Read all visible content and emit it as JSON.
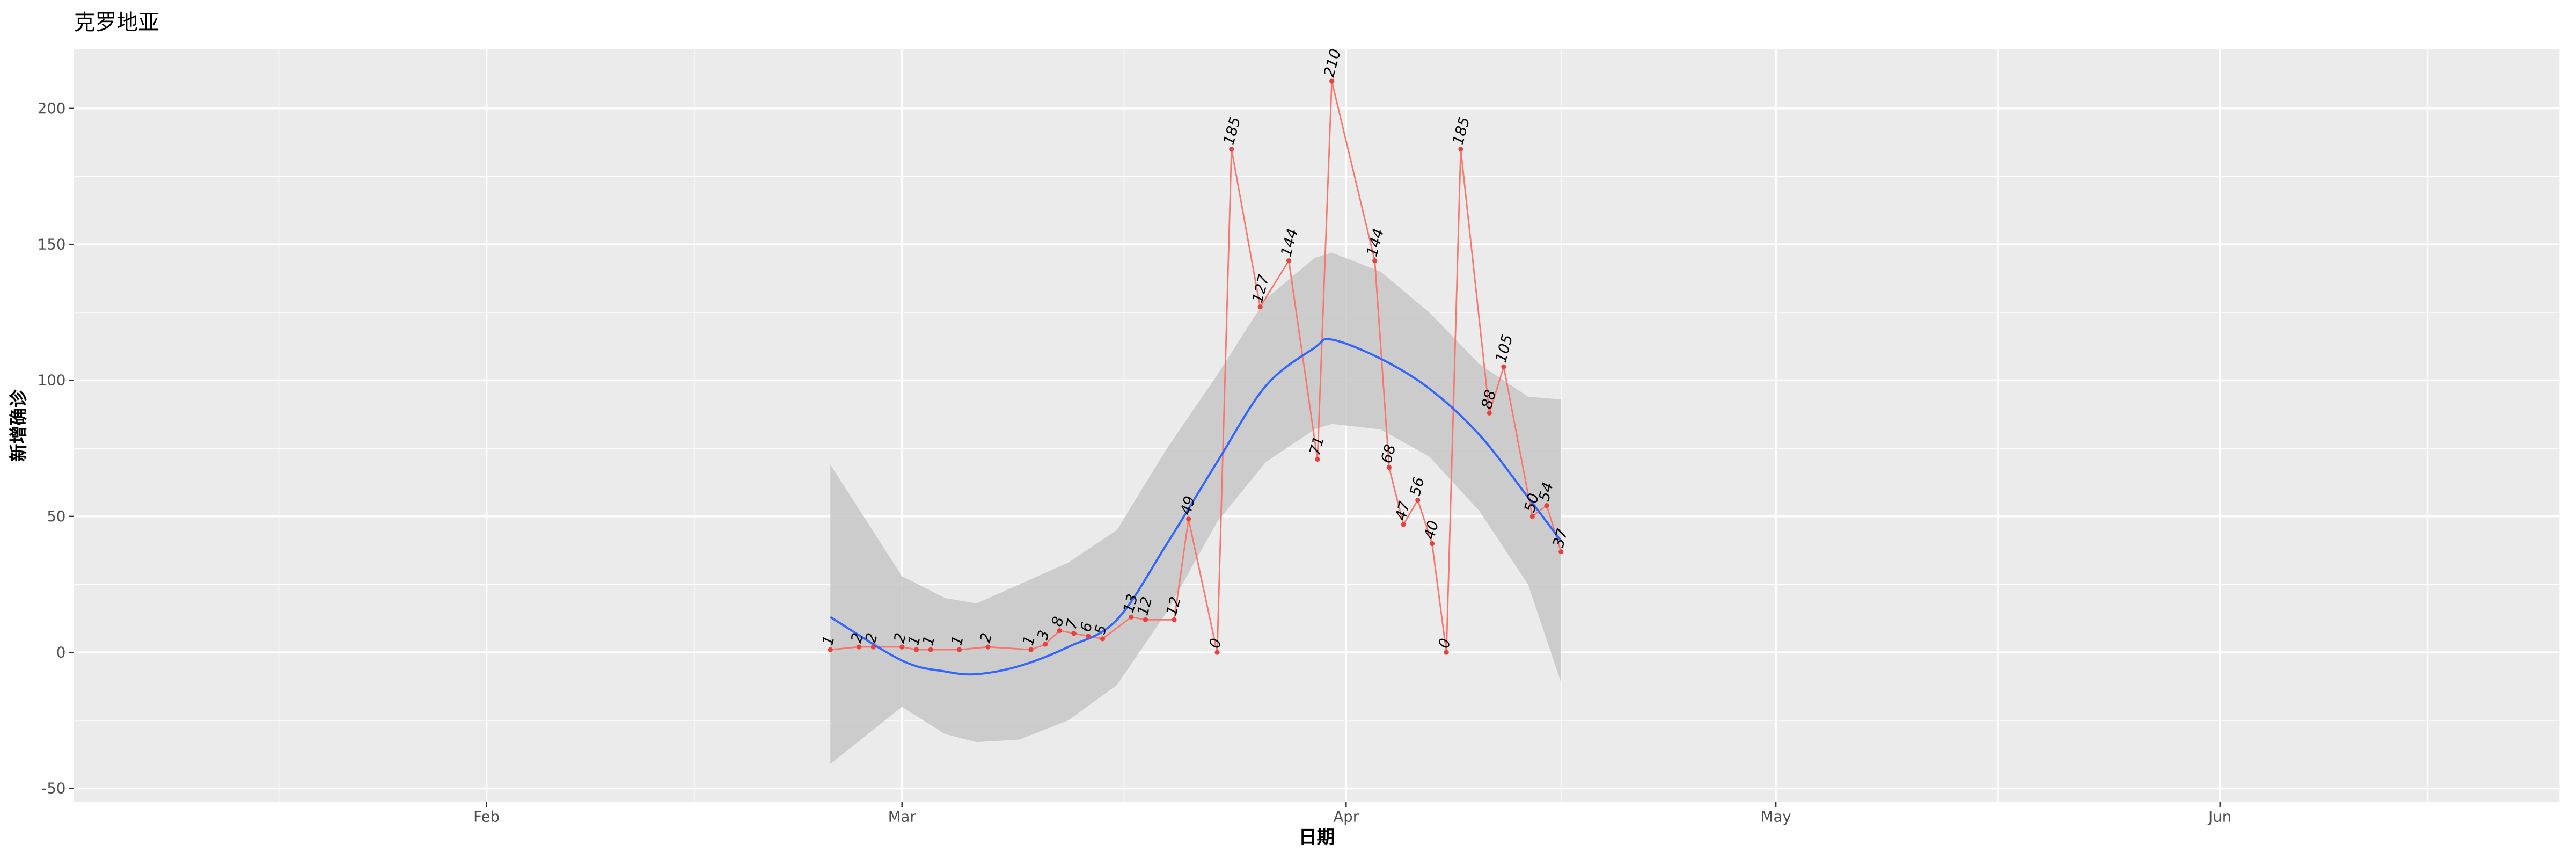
{
  "chart_data": {
    "type": "line",
    "title": "克罗地亚",
    "xlabel": "日期",
    "ylabel": "新增确诊",
    "x": [
      56,
      58,
      59,
      61,
      62,
      63,
      65,
      67,
      70,
      71,
      72,
      73,
      74,
      75,
      77,
      78,
      80,
      81,
      83,
      84,
      86,
      88,
      90,
      91,
      94,
      95,
      96,
      97,
      98,
      99,
      100,
      102,
      103,
      105,
      106,
      107
    ],
    "values": [
      1,
      2,
      2,
      2,
      1,
      1,
      1,
      2,
      1,
      3,
      8,
      7,
      6,
      5,
      13,
      12,
      12,
      49,
      0,
      185,
      127,
      144,
      71,
      210,
      144,
      68,
      47,
      56,
      40,
      0,
      185,
      88,
      105,
      50,
      54,
      37
    ],
    "color": "#f8766d",
    "point_color": "#e8423f",
    "smooth": {
      "x": [
        56,
        61,
        64,
        66.2,
        69.2,
        72.6,
        76,
        79.5,
        83,
        86.4,
        89.8,
        91,
        94.4,
        97.8,
        101.3,
        104.7,
        107
      ],
      "values": [
        13,
        -3,
        -7,
        -8,
        -5,
        2,
        12,
        40,
        70,
        98,
        112,
        115,
        108,
        97,
        80,
        57,
        41
      ],
      "lower": [
        -41,
        -20,
        -30,
        -33,
        -32,
        -25,
        -12,
        15,
        48,
        70,
        82,
        84,
        82,
        72,
        52,
        25,
        -11
      ],
      "upper": [
        69,
        28,
        20,
        18,
        25,
        33,
        45,
        75,
        102,
        130,
        145,
        147,
        140,
        125,
        106,
        94,
        93
      ],
      "color": "#3366ff",
      "fill": "#c7c7c7"
    },
    "xlim": [
      3.2,
      176.7
    ],
    "ylim": [
      -55,
      221.7
    ],
    "xticks": [
      {
        "value": 32,
        "label": "Feb"
      },
      {
        "value": 61,
        "label": "Mar"
      },
      {
        "value": 92,
        "label": "Apr"
      },
      {
        "value": 122,
        "label": "May"
      },
      {
        "value": 153,
        "label": "Jun"
      }
    ],
    "yticks": [
      -50,
      0,
      50,
      100,
      150,
      200
    ],
    "grid": true,
    "panel_color": "#ebebeb"
  }
}
